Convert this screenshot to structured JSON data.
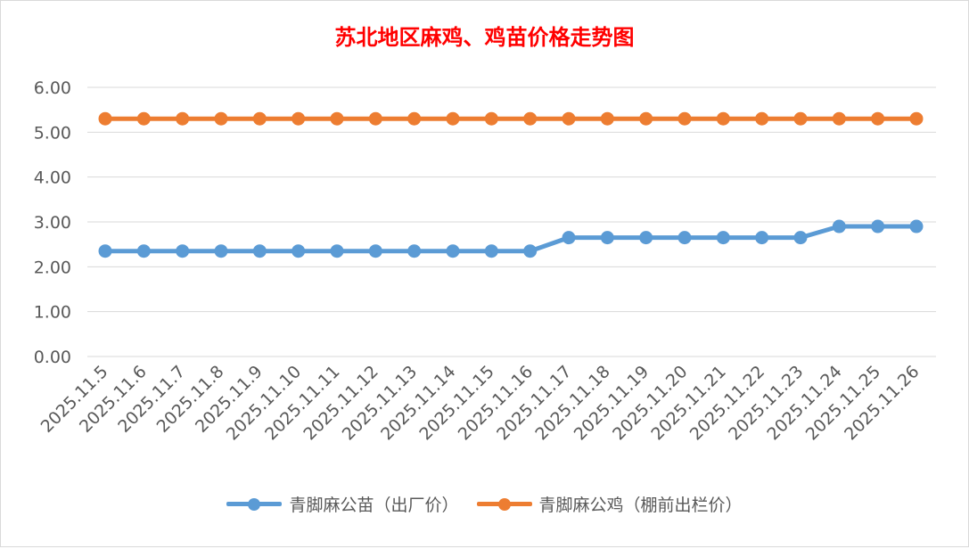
{
  "chart_data": {
    "type": "line",
    "title": "苏北地区麻鸡、鸡苗价格走势图",
    "xlabel": "",
    "ylabel": "",
    "ylim": [
      0,
      6
    ],
    "yticks": [
      "0.00",
      "1.00",
      "2.00",
      "3.00",
      "4.00",
      "5.00",
      "6.00"
    ],
    "grid": true,
    "legend_position": "bottom",
    "categories": [
      "2025.11.5",
      "2025.11.6",
      "2025.11.7",
      "2025.11.8",
      "2025.11.9",
      "2025.11.10",
      "2025.11.11",
      "2025.11.12",
      "2025.11.13",
      "2025.11.14",
      "2025.11.15",
      "2025.11.16",
      "2025.11.17",
      "2025.11.18",
      "2025.11.19",
      "2025.11.20",
      "2025.11.21",
      "2025.11.22",
      "2025.11.23",
      "2025.11.24",
      "2025.11.25",
      "2025.11.26"
    ],
    "series": [
      {
        "name": "青脚麻公苗（出厂价）",
        "color": "#5b9bd5",
        "values": [
          2.35,
          2.35,
          2.35,
          2.35,
          2.35,
          2.35,
          2.35,
          2.35,
          2.35,
          2.35,
          2.35,
          2.35,
          2.65,
          2.65,
          2.65,
          2.65,
          2.65,
          2.65,
          2.65,
          2.9,
          2.9,
          2.9
        ]
      },
      {
        "name": "青脚麻公鸡（棚前出栏价）",
        "color": "#ed7d31",
        "values": [
          5.3,
          5.3,
          5.3,
          5.3,
          5.3,
          5.3,
          5.3,
          5.3,
          5.3,
          5.3,
          5.3,
          5.3,
          5.3,
          5.3,
          5.3,
          5.3,
          5.3,
          5.3,
          5.3,
          5.3,
          5.3,
          5.3
        ]
      }
    ]
  }
}
